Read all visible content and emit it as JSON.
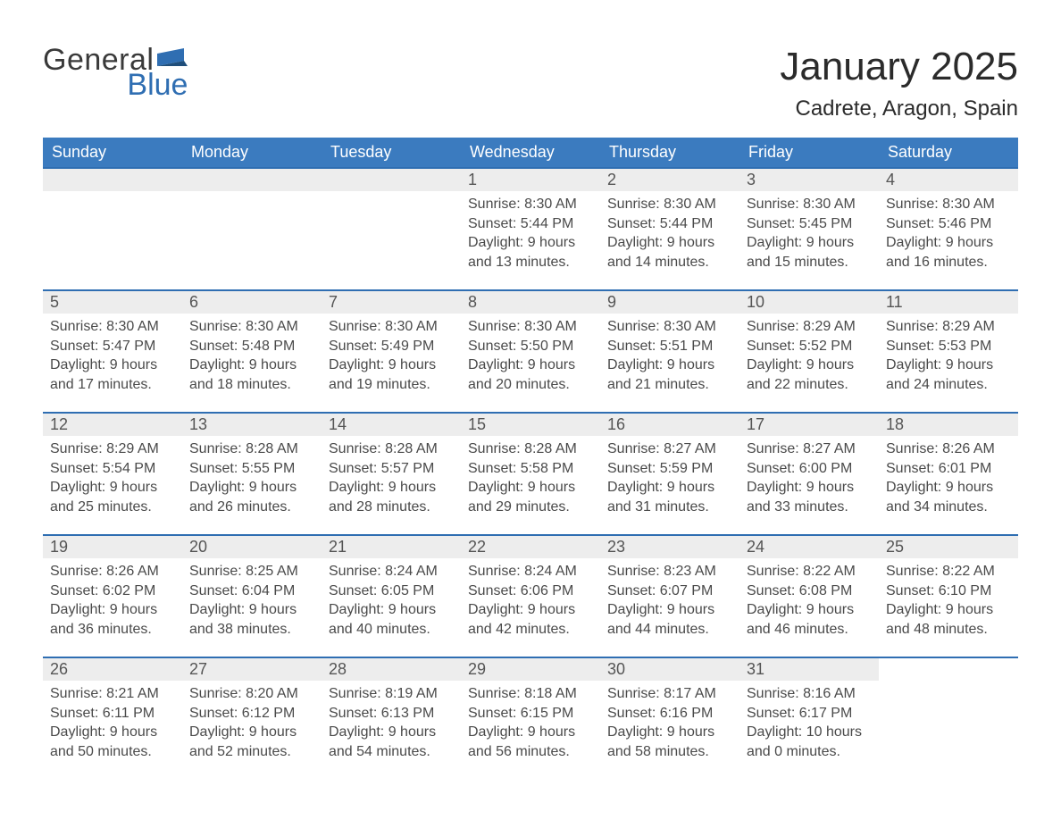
{
  "brand": {
    "word1": "General",
    "word2": "Blue",
    "flag_color": "#2f6eb2",
    "text_color_dark": "#3a3a3a"
  },
  "title": {
    "month_year": "January 2025",
    "location": "Cadrete, Aragon, Spain"
  },
  "colors": {
    "header_row_bg": "#3b7bbf",
    "header_row_text": "#ffffff",
    "daynum_bg": "#ededed",
    "rule": "#2f6eb2",
    "page_bg": "#ffffff",
    "body_text": "#4a4a4a"
  },
  "fonts": {
    "title_size_pt": 33,
    "location_size_pt": 18,
    "dow_size_pt": 14,
    "daynum_size_pt": 14,
    "body_size_pt": 12
  },
  "labels": {
    "sunrise": "Sunrise:",
    "sunset": "Sunset:",
    "daylight": "Daylight:"
  },
  "calendar": {
    "type": "table",
    "columns": [
      "Sunday",
      "Monday",
      "Tuesday",
      "Wednesday",
      "Thursday",
      "Friday",
      "Saturday"
    ],
    "weeks": [
      [
        null,
        null,
        null,
        {
          "n": "1",
          "sunrise": "8:30 AM",
          "sunset": "5:44 PM",
          "dl1": "9 hours",
          "dl2": "and 13 minutes."
        },
        {
          "n": "2",
          "sunrise": "8:30 AM",
          "sunset": "5:44 PM",
          "dl1": "9 hours",
          "dl2": "and 14 minutes."
        },
        {
          "n": "3",
          "sunrise": "8:30 AM",
          "sunset": "5:45 PM",
          "dl1": "9 hours",
          "dl2": "and 15 minutes."
        },
        {
          "n": "4",
          "sunrise": "8:30 AM",
          "sunset": "5:46 PM",
          "dl1": "9 hours",
          "dl2": "and 16 minutes."
        }
      ],
      [
        {
          "n": "5",
          "sunrise": "8:30 AM",
          "sunset": "5:47 PM",
          "dl1": "9 hours",
          "dl2": "and 17 minutes."
        },
        {
          "n": "6",
          "sunrise": "8:30 AM",
          "sunset": "5:48 PM",
          "dl1": "9 hours",
          "dl2": "and 18 minutes."
        },
        {
          "n": "7",
          "sunrise": "8:30 AM",
          "sunset": "5:49 PM",
          "dl1": "9 hours",
          "dl2": "and 19 minutes."
        },
        {
          "n": "8",
          "sunrise": "8:30 AM",
          "sunset": "5:50 PM",
          "dl1": "9 hours",
          "dl2": "and 20 minutes."
        },
        {
          "n": "9",
          "sunrise": "8:30 AM",
          "sunset": "5:51 PM",
          "dl1": "9 hours",
          "dl2": "and 21 minutes."
        },
        {
          "n": "10",
          "sunrise": "8:29 AM",
          "sunset": "5:52 PM",
          "dl1": "9 hours",
          "dl2": "and 22 minutes."
        },
        {
          "n": "11",
          "sunrise": "8:29 AM",
          "sunset": "5:53 PM",
          "dl1": "9 hours",
          "dl2": "and 24 minutes."
        }
      ],
      [
        {
          "n": "12",
          "sunrise": "8:29 AM",
          "sunset": "5:54 PM",
          "dl1": "9 hours",
          "dl2": "and 25 minutes."
        },
        {
          "n": "13",
          "sunrise": "8:28 AM",
          "sunset": "5:55 PM",
          "dl1": "9 hours",
          "dl2": "and 26 minutes."
        },
        {
          "n": "14",
          "sunrise": "8:28 AM",
          "sunset": "5:57 PM",
          "dl1": "9 hours",
          "dl2": "and 28 minutes."
        },
        {
          "n": "15",
          "sunrise": "8:28 AM",
          "sunset": "5:58 PM",
          "dl1": "9 hours",
          "dl2": "and 29 minutes."
        },
        {
          "n": "16",
          "sunrise": "8:27 AM",
          "sunset": "5:59 PM",
          "dl1": "9 hours",
          "dl2": "and 31 minutes."
        },
        {
          "n": "17",
          "sunrise": "8:27 AM",
          "sunset": "6:00 PM",
          "dl1": "9 hours",
          "dl2": "and 33 minutes."
        },
        {
          "n": "18",
          "sunrise": "8:26 AM",
          "sunset": "6:01 PM",
          "dl1": "9 hours",
          "dl2": "and 34 minutes."
        }
      ],
      [
        {
          "n": "19",
          "sunrise": "8:26 AM",
          "sunset": "6:02 PM",
          "dl1": "9 hours",
          "dl2": "and 36 minutes."
        },
        {
          "n": "20",
          "sunrise": "8:25 AM",
          "sunset": "6:04 PM",
          "dl1": "9 hours",
          "dl2": "and 38 minutes."
        },
        {
          "n": "21",
          "sunrise": "8:24 AM",
          "sunset": "6:05 PM",
          "dl1": "9 hours",
          "dl2": "and 40 minutes."
        },
        {
          "n": "22",
          "sunrise": "8:24 AM",
          "sunset": "6:06 PM",
          "dl1": "9 hours",
          "dl2": "and 42 minutes."
        },
        {
          "n": "23",
          "sunrise": "8:23 AM",
          "sunset": "6:07 PM",
          "dl1": "9 hours",
          "dl2": "and 44 minutes."
        },
        {
          "n": "24",
          "sunrise": "8:22 AM",
          "sunset": "6:08 PM",
          "dl1": "9 hours",
          "dl2": "and 46 minutes."
        },
        {
          "n": "25",
          "sunrise": "8:22 AM",
          "sunset": "6:10 PM",
          "dl1": "9 hours",
          "dl2": "and 48 minutes."
        }
      ],
      [
        {
          "n": "26",
          "sunrise": "8:21 AM",
          "sunset": "6:11 PM",
          "dl1": "9 hours",
          "dl2": "and 50 minutes."
        },
        {
          "n": "27",
          "sunrise": "8:20 AM",
          "sunset": "6:12 PM",
          "dl1": "9 hours",
          "dl2": "and 52 minutes."
        },
        {
          "n": "28",
          "sunrise": "8:19 AM",
          "sunset": "6:13 PM",
          "dl1": "9 hours",
          "dl2": "and 54 minutes."
        },
        {
          "n": "29",
          "sunrise": "8:18 AM",
          "sunset": "6:15 PM",
          "dl1": "9 hours",
          "dl2": "and 56 minutes."
        },
        {
          "n": "30",
          "sunrise": "8:17 AM",
          "sunset": "6:16 PM",
          "dl1": "9 hours",
          "dl2": "and 58 minutes."
        },
        {
          "n": "31",
          "sunrise": "8:16 AM",
          "sunset": "6:17 PM",
          "dl1": "10 hours",
          "dl2": "and 0 minutes."
        },
        null
      ]
    ]
  }
}
